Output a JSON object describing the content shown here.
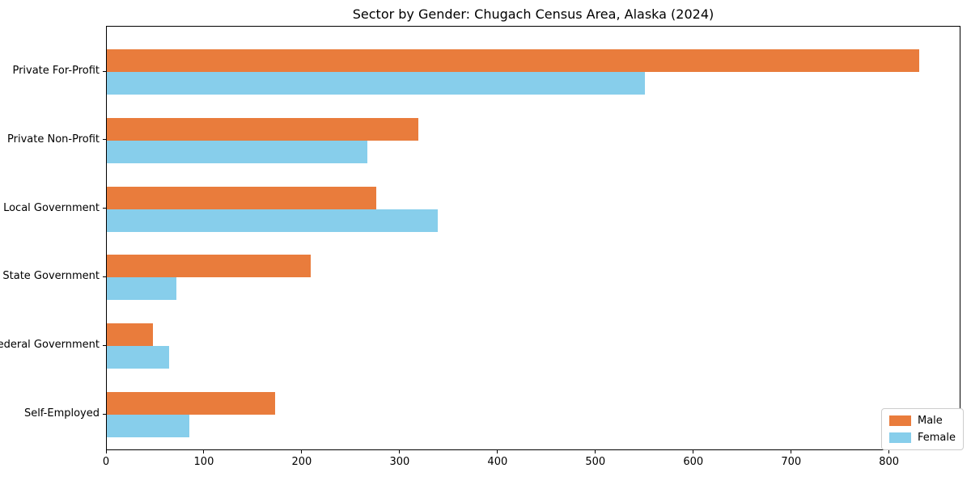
{
  "title": "Sector by Gender: Chugach Census Area, Alaska (2024)",
  "chart_data": {
    "type": "bar",
    "orientation": "horizontal",
    "title": "Sector by Gender: Chugach Census Area, Alaska (2024)",
    "categories": [
      "Private For-Profit",
      "Private Non-Profit",
      "Local Government",
      "State Government",
      "Federal Government",
      "Self-Employed"
    ],
    "series": [
      {
        "name": "Male",
        "color": "#E97C3C",
        "values": [
          830,
          318,
          275,
          208,
          47,
          172
        ]
      },
      {
        "name": "Female",
        "color": "#87CEEB",
        "values": [
          550,
          266,
          338,
          71,
          64,
          84
        ]
      }
    ],
    "xlabel": "",
    "ylabel": "",
    "xlim": [
      0,
      873
    ],
    "xticks": [
      0,
      100,
      200,
      300,
      400,
      500,
      600,
      700,
      800
    ],
    "grid": false,
    "legend_position": "lower right"
  }
}
